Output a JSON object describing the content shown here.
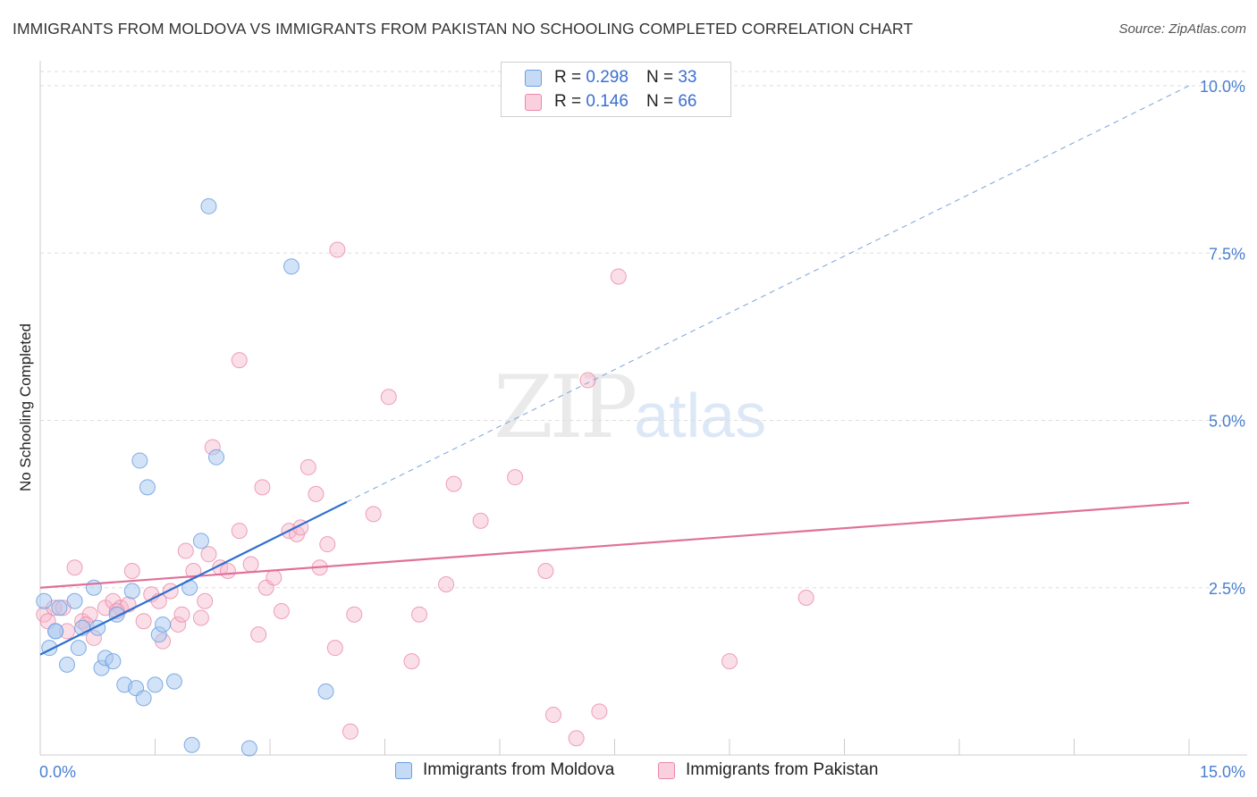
{
  "title": "IMMIGRANTS FROM MOLDOVA VS IMMIGRANTS FROM PAKISTAN NO SCHOOLING COMPLETED CORRELATION CHART",
  "source": "Source: ZipAtlas.com",
  "watermark": {
    "zip": "ZIP",
    "atlas": "atlas"
  },
  "legend": {
    "moldova": {
      "r_label": "R =",
      "r_value": "0.298",
      "n_label": "N =",
      "n_value": "33"
    },
    "pakistan": {
      "r_label": "R =",
      "r_value": "0.146",
      "n_label": "N =",
      "n_value": "66"
    }
  },
  "bottom_legend": {
    "moldova": "Immigrants from Moldova",
    "pakistan": "Immigrants from Pakistan"
  },
  "colors": {
    "moldova_fill": "#a8c8f0",
    "moldova_stroke": "#6a9fe0",
    "moldova_line": "#2f6fcf",
    "pakistan_fill": "#f7b8cc",
    "pakistan_stroke": "#e889a8",
    "pakistan_line": "#e0709a",
    "tick_text": "#4a7fd0",
    "grid": "#dddddd"
  },
  "chart_data": {
    "type": "scatter",
    "title": "IMMIGRANTS FROM MOLDOVA VS IMMIGRANTS FROM PAKISTAN NO SCHOOLING COMPLETED CORRELATION CHART",
    "xlabel": "",
    "ylabel": "No Schooling Completed",
    "xlim": [
      0,
      15
    ],
    "ylim": [
      0,
      10
    ],
    "x_tick_labels": [
      "0.0%",
      "15.0%"
    ],
    "x_tick_values": [
      0,
      15
    ],
    "y_tick_labels": [
      "2.5%",
      "5.0%",
      "7.5%",
      "10.0%"
    ],
    "y_tick_values": [
      2.5,
      5.0,
      7.5,
      10.0
    ],
    "series": [
      {
        "name": "Immigrants from Moldova",
        "r": 0.298,
        "n": 33,
        "points": [
          [
            0.05,
            2.3
          ],
          [
            0.12,
            1.6
          ],
          [
            0.2,
            1.85
          ],
          [
            0.25,
            2.2
          ],
          [
            0.35,
            1.35
          ],
          [
            0.45,
            2.3
          ],
          [
            0.5,
            1.6
          ],
          [
            0.55,
            1.9
          ],
          [
            0.7,
            2.5
          ],
          [
            0.75,
            1.9
          ],
          [
            0.8,
            1.3
          ],
          [
            0.85,
            1.45
          ],
          [
            0.95,
            1.4
          ],
          [
            1.0,
            2.1
          ],
          [
            1.1,
            1.05
          ],
          [
            1.2,
            2.45
          ],
          [
            1.25,
            1.0
          ],
          [
            1.35,
            0.85
          ],
          [
            1.3,
            4.4
          ],
          [
            1.4,
            4.0
          ],
          [
            1.5,
            1.05
          ],
          [
            1.55,
            1.8
          ],
          [
            1.6,
            1.95
          ],
          [
            1.75,
            1.1
          ],
          [
            1.95,
            2.5
          ],
          [
            2.1,
            3.2
          ],
          [
            2.2,
            8.2
          ],
          [
            2.3,
            4.45
          ],
          [
            1.98,
            0.15
          ],
          [
            2.73,
            0.1
          ],
          [
            3.28,
            7.3
          ],
          [
            3.73,
            0.95
          ],
          [
            0.2,
            1.85
          ]
        ],
        "trend": {
          "x0": 0.0,
          "y0": 1.5,
          "x1": 4.0,
          "y1": 3.78,
          "dashed_to": [
            15.0,
            10.0
          ]
        }
      },
      {
        "name": "Immigrants from Pakistan",
        "r": 0.146,
        "n": 66,
        "points": [
          [
            0.05,
            2.1
          ],
          [
            0.1,
            2.0
          ],
          [
            0.18,
            2.2
          ],
          [
            0.3,
            2.2
          ],
          [
            0.35,
            1.85
          ],
          [
            0.45,
            2.8
          ],
          [
            0.55,
            2.0
          ],
          [
            0.65,
            2.1
          ],
          [
            0.7,
            1.75
          ],
          [
            0.85,
            2.2
          ],
          [
            0.95,
            2.3
          ],
          [
            1.05,
            2.2
          ],
          [
            1.15,
            2.25
          ],
          [
            1.2,
            2.75
          ],
          [
            1.35,
            2.0
          ],
          [
            1.45,
            2.4
          ],
          [
            1.55,
            2.3
          ],
          [
            1.6,
            1.7
          ],
          [
            1.7,
            2.45
          ],
          [
            1.8,
            1.95
          ],
          [
            1.85,
            2.1
          ],
          [
            1.9,
            3.05
          ],
          [
            2.0,
            2.75
          ],
          [
            2.1,
            2.05
          ],
          [
            2.2,
            3.0
          ],
          [
            2.25,
            4.6
          ],
          [
            2.35,
            2.8
          ],
          [
            2.45,
            2.75
          ],
          [
            2.6,
            3.35
          ],
          [
            2.6,
            5.9
          ],
          [
            2.75,
            2.85
          ],
          [
            2.85,
            1.8
          ],
          [
            2.9,
            4.0
          ],
          [
            2.95,
            2.5
          ],
          [
            3.05,
            2.65
          ],
          [
            3.15,
            2.15
          ],
          [
            3.25,
            3.35
          ],
          [
            3.35,
            3.3
          ],
          [
            3.4,
            3.4
          ],
          [
            3.5,
            4.3
          ],
          [
            3.6,
            3.9
          ],
          [
            3.65,
            2.8
          ],
          [
            3.75,
            3.15
          ],
          [
            3.85,
            1.6
          ],
          [
            3.88,
            7.55
          ],
          [
            4.05,
            0.35
          ],
          [
            4.1,
            2.1
          ],
          [
            4.35,
            3.6
          ],
          [
            4.55,
            5.35
          ],
          [
            4.85,
            1.4
          ],
          [
            4.95,
            2.1
          ],
          [
            5.3,
            2.55
          ],
          [
            5.4,
            4.05
          ],
          [
            5.75,
            3.5
          ],
          [
            6.2,
            4.15
          ],
          [
            6.6,
            2.75
          ],
          [
            6.7,
            0.6
          ],
          [
            7.0,
            0.25
          ],
          [
            7.15,
            5.6
          ],
          [
            7.3,
            0.65
          ],
          [
            7.55,
            7.15
          ],
          [
            9.0,
            1.4
          ],
          [
            10.0,
            2.35
          ],
          [
            0.6,
            1.95
          ],
          [
            1.0,
            2.15
          ],
          [
            2.15,
            2.3
          ]
        ],
        "trend": {
          "x0": 0.0,
          "y0": 2.5,
          "x1": 15.0,
          "y1": 3.77
        }
      }
    ]
  }
}
